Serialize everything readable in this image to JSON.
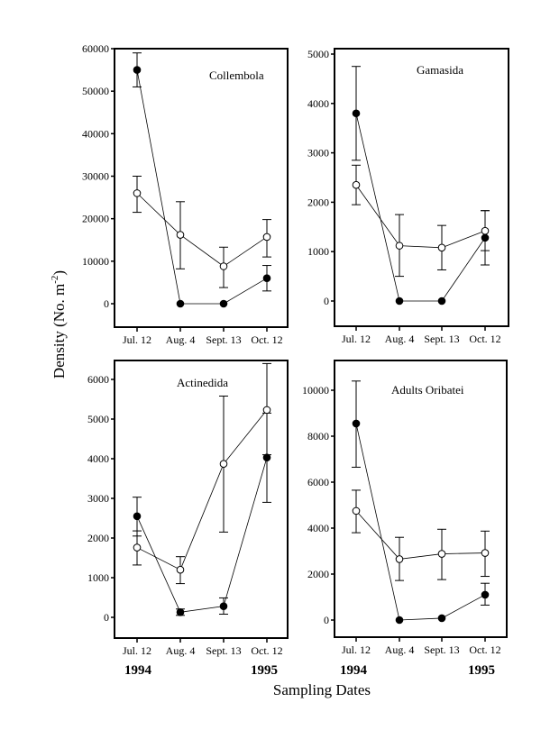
{
  "figure": {
    "ylabel": "Density (No. m",
    "ylabel_sup": "-2",
    "ylabel_close": ")",
    "xlabel": "Sampling Dates",
    "year_start": "1994",
    "year_end": "1995"
  },
  "chart_data": [
    {
      "type": "line",
      "title": "Collembola",
      "categories": [
        "Jul. 12",
        "Aug. 4",
        "Sept. 13",
        "Oct. 12"
      ],
      "ylim": [
        -5000,
        60000
      ],
      "yticks": [
        0,
        10000,
        20000,
        30000,
        40000,
        50000,
        60000
      ],
      "series": [
        {
          "name": "filled",
          "marker": "filled-circle",
          "values": [
            55000,
            0,
            0,
            6000
          ],
          "err_low": [
            51000,
            null,
            null,
            3000
          ],
          "err_high": [
            59000,
            null,
            null,
            9000
          ]
        },
        {
          "name": "open",
          "marker": "open-circle",
          "values": [
            26000,
            16200,
            8800,
            15700
          ],
          "err_low": [
            21500,
            8200,
            3800,
            11000
          ],
          "err_high": [
            30000,
            24000,
            13300,
            19800
          ]
        }
      ]
    },
    {
      "type": "line",
      "title": "Gamasida",
      "categories": [
        "Jul. 12",
        "Aug. 4",
        "Sept. 13",
        "Oct. 12"
      ],
      "ylim": [
        -500,
        5100
      ],
      "yticks": [
        0,
        1000,
        2000,
        3000,
        4000,
        5000
      ],
      "series": [
        {
          "name": "filled",
          "marker": "filled-circle",
          "values": [
            3800,
            0,
            0,
            1280
          ],
          "err_low": [
            2850,
            null,
            null,
            730
          ],
          "err_high": [
            4750,
            null,
            null,
            1830
          ]
        },
        {
          "name": "open",
          "marker": "open-circle",
          "values": [
            2350,
            1120,
            1080,
            1420
          ],
          "err_low": [
            1950,
            500,
            630,
            1020
          ],
          "err_high": [
            2750,
            1750,
            1530,
            1830
          ]
        }
      ]
    },
    {
      "type": "line",
      "title": "Actinedida",
      "categories": [
        "Jul. 12",
        "Aug. 4",
        "Sept. 13",
        "Oct. 12"
      ],
      "ylim": [
        -500,
        6500
      ],
      "yticks": [
        0,
        1000,
        2000,
        3000,
        4000,
        5000,
        6000
      ],
      "series": [
        {
          "name": "filled",
          "marker": "filled-circle",
          "values": [
            2550,
            130,
            280,
            4030
          ],
          "err_low": [
            2050,
            50,
            80,
            2900
          ],
          "err_high": [
            3030,
            210,
            490,
            5150
          ]
        },
        {
          "name": "open",
          "marker": "open-circle",
          "values": [
            1760,
            1200,
            3870,
            5230
          ],
          "err_low": [
            1320,
            850,
            2150,
            4100
          ],
          "err_high": [
            2180,
            1530,
            5580,
            6400
          ]
        }
      ]
    },
    {
      "type": "line",
      "title": "Adults Oribatei",
      "categories": [
        "Jul. 12",
        "Aug. 4",
        "Sept. 13",
        "Oct. 12"
      ],
      "ylim": [
        -700,
        11200
      ],
      "yticks": [
        0,
        2000,
        4000,
        6000,
        8000,
        10000
      ],
      "series": [
        {
          "name": "filled",
          "marker": "filled-circle",
          "values": [
            8550,
            0,
            80,
            1100
          ],
          "err_low": [
            6650,
            null,
            null,
            650
          ],
          "err_high": [
            10400,
            null,
            null,
            1600
          ]
        },
        {
          "name": "open",
          "marker": "open-circle",
          "values": [
            4750,
            2650,
            2880,
            2920
          ],
          "err_low": [
            3800,
            1720,
            1760,
            1900
          ],
          "err_high": [
            5650,
            3600,
            3950,
            3870
          ]
        }
      ]
    }
  ]
}
